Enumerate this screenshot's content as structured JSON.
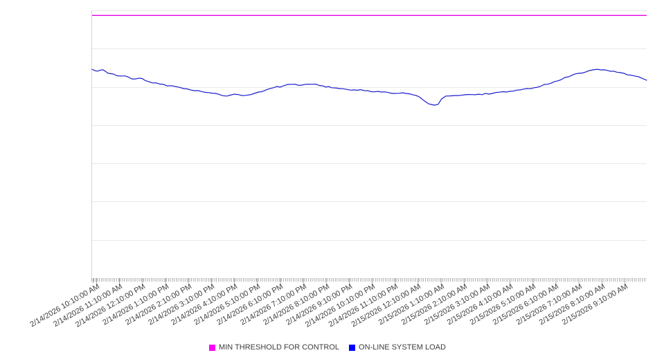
{
  "chart_data": {
    "type": "line",
    "title": "",
    "x_axis": {
      "tick_labels": [
        "2/14/2026 10:10:00 AM",
        "2/14/2026 11:10:00 AM",
        "2/14/2026 12:10:00 PM",
        "2/14/2026 1:10:00 PM",
        "2/14/2026 2:10:00 PM",
        "2/14/2026 3:10:00 PM",
        "2/14/2026 4:10:00 PM",
        "2/14/2026 5:10:00 PM",
        "2/14/2026 6:10:00 PM",
        "2/14/2026 7:10:00 PM",
        "2/14/2026 8:10:00 PM",
        "2/14/2026 9:10:00 PM",
        "2/14/2026 10:10:00 PM",
        "2/14/2026 11:10:00 PM",
        "2/15/2026 12:10:00 AM",
        "2/15/2026 1:10:00 AM",
        "2/15/2026 2:10:00 AM",
        "2/15/2026 3:10:00 AM",
        "2/15/2026 4:10:00 AM",
        "2/15/2026 5:10:00 AM",
        "2/15/2026 6:10:00 AM",
        "2/15/2026 7:10:00 AM",
        "2/15/2026 8:10:00 AM",
        "2/15/2026 9:10:00 AM"
      ],
      "minor_tick_interval": "5 minutes",
      "label_rotation_deg": -30
    },
    "y_axis": {
      "tick_labels_visible": false,
      "range": [
        0,
        1
      ],
      "gridline_count": 8,
      "grid_on": true
    },
    "series": [
      {
        "name": "MIN THRESHOLD FOR CONTROL",
        "color": "#ff00ff",
        "type": "constant",
        "value": 0.981
      },
      {
        "name": "ON-LINE SYSTEM LOAD",
        "color": "#0000ff",
        "type": "line",
        "points": [
          [
            0.0,
            0.78
          ],
          [
            0.01,
            0.773
          ],
          [
            0.02,
            0.778
          ],
          [
            0.029,
            0.765
          ],
          [
            0.039,
            0.762
          ],
          [
            0.05,
            0.755
          ],
          [
            0.06,
            0.755
          ],
          [
            0.072,
            0.744
          ],
          [
            0.085,
            0.747
          ],
          [
            0.102,
            0.734
          ],
          [
            0.116,
            0.729
          ],
          [
            0.135,
            0.718
          ],
          [
            0.15,
            0.716
          ],
          [
            0.165,
            0.708
          ],
          [
            0.185,
            0.7
          ],
          [
            0.21,
            0.693
          ],
          [
            0.228,
            0.687
          ],
          [
            0.243,
            0.68
          ],
          [
            0.256,
            0.687
          ],
          [
            0.27,
            0.682
          ],
          [
            0.285,
            0.685
          ],
          [
            0.3,
            0.695
          ],
          [
            0.316,
            0.705
          ],
          [
            0.327,
            0.711
          ],
          [
            0.345,
            0.718
          ],
          [
            0.36,
            0.724
          ],
          [
            0.378,
            0.721
          ],
          [
            0.397,
            0.724
          ],
          [
            0.416,
            0.718
          ],
          [
            0.432,
            0.711
          ],
          [
            0.447,
            0.708
          ],
          [
            0.472,
            0.703
          ],
          [
            0.497,
            0.7
          ],
          [
            0.522,
            0.695
          ],
          [
            0.547,
            0.69
          ],
          [
            0.566,
            0.69
          ],
          [
            0.578,
            0.685
          ],
          [
            0.59,
            0.677
          ],
          [
            0.599,
            0.662
          ],
          [
            0.607,
            0.651
          ],
          [
            0.617,
            0.646
          ],
          [
            0.624,
            0.649
          ],
          [
            0.63,
            0.669
          ],
          [
            0.638,
            0.68
          ],
          [
            0.653,
            0.682
          ],
          [
            0.672,
            0.685
          ],
          [
            0.697,
            0.687
          ],
          [
            0.722,
            0.69
          ],
          [
            0.747,
            0.695
          ],
          [
            0.772,
            0.703
          ],
          [
            0.797,
            0.711
          ],
          [
            0.821,
            0.724
          ],
          [
            0.84,
            0.737
          ],
          [
            0.859,
            0.752
          ],
          [
            0.878,
            0.765
          ],
          [
            0.896,
            0.775
          ],
          [
            0.911,
            0.78
          ],
          [
            0.924,
            0.778
          ],
          [
            0.94,
            0.773
          ],
          [
            0.959,
            0.765
          ],
          [
            0.978,
            0.755
          ],
          [
            0.991,
            0.747
          ],
          [
            1.0,
            0.739
          ]
        ]
      }
    ],
    "legend": {
      "position": "bottom",
      "items": [
        {
          "label": "MIN THRESHOLD FOR CONTROL",
          "color": "#ff00ff"
        },
        {
          "label": "ON-LINE SYSTEM LOAD",
          "color": "#0000ff"
        }
      ]
    }
  },
  "colors": {
    "background": "#ffffff",
    "grid": "#e9e9e9",
    "axis": "#d4d4d4",
    "minor_tick": "#b2b2b2",
    "label_text": "#3d3d3d",
    "threshold_line": "#e400e4",
    "load_line": "#1a1acd"
  }
}
